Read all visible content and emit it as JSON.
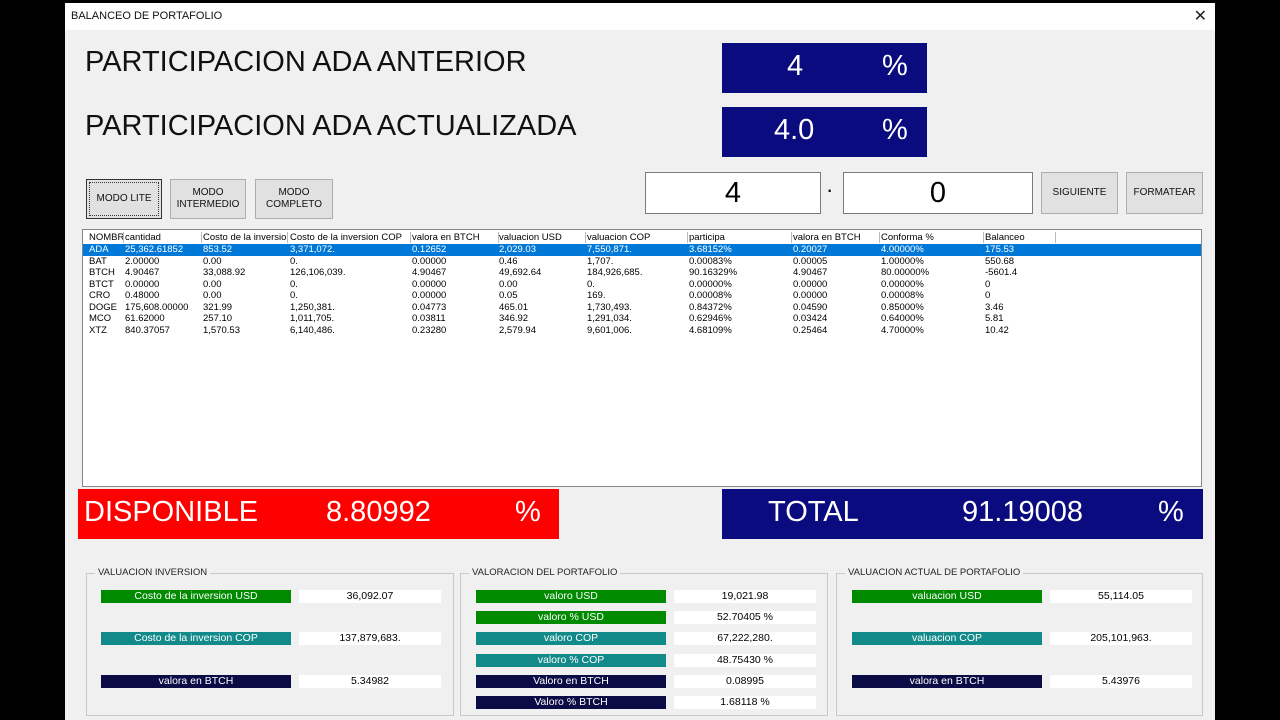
{
  "window": {
    "title": "BALANCEO DE PORTAFOLIO",
    "close": "✕"
  },
  "header": {
    "anterior_label": "PARTICIPACION ADA  ANTERIOR",
    "anterior_value": "4",
    "actualizada_label": "PARTICIPACION ADA ACTUALIZADA",
    "actualizada_value": "4.0",
    "percent": "%"
  },
  "toolbar": {
    "modo_lite": "MODO LITE",
    "modo_intermedio": "MODO INTERMEDIO",
    "modo_completo": "MODO COMPLETO",
    "input_left": "4",
    "separator": "·",
    "input_right": "0",
    "siguiente": "SIGUIENTE",
    "formatear": "FORMATEAR"
  },
  "table": {
    "columns": [
      "NOMBRE",
      "cantidad",
      "Costo de la inversion USD",
      "Costo de la inversion COP",
      "valora en BTCH",
      "valuacion USD",
      "valuacion COP",
      "participa",
      "valora en BTCH",
      "Conforma %",
      "Balanceo"
    ],
    "rows": [
      [
        "ADA",
        "25,362.61852",
        "853.52",
        "3,371,072.",
        "0.12652",
        "2,029.03",
        "7,550,871.",
        "3.68152%",
        "0.20027",
        "4.00000%",
        "175.53"
      ],
      [
        "BAT",
        "2.00000",
        "0.00",
        "0.",
        "0.00000",
        "0.46",
        "1,707.",
        "0.00083%",
        "0.00005",
        "1.00000%",
        "550.68"
      ],
      [
        "BTCH",
        "4.90467",
        "33,088.92",
        "126,106,039.",
        "4.90467",
        "49,692.64",
        "184,926,685.",
        "90.16329%",
        "4.90467",
        "80.00000%",
        "-5601.4"
      ],
      [
        "BTCT",
        "0.00000",
        "0.00",
        "0.",
        "0.00000",
        "0.00",
        "0.",
        "0.00000%",
        "0.00000",
        "0.00000%",
        "0"
      ],
      [
        "CRO",
        "0.48000",
        "0.00",
        "0.",
        "0.00000",
        "0.05",
        "169.",
        "0.00008%",
        "0.00000",
        "0.00008%",
        "0"
      ],
      [
        "DOGE",
        "175,608.00000",
        "321.99",
        "1,250,381.",
        "0.04773",
        "465.01",
        "1,730,493.",
        "0.84372%",
        "0.04590",
        "0.85000%",
        "3.46"
      ],
      [
        "MCO",
        "61.62000",
        "257.10",
        "1,011,705.",
        "0.03811",
        "346.92",
        "1,291,034.",
        "0.62946%",
        "0.03424",
        "0.64000%",
        "5.81"
      ],
      [
        "XTZ",
        "840.37057",
        "1,570.53",
        "6,140,486.",
        "0.23280",
        "2,579.94",
        "9,601,006.",
        "4.68109%",
        "0.25464",
        "4.70000%",
        "10.42"
      ]
    ],
    "selected_row": 0
  },
  "summary": {
    "disponible_label": "DISPONIBLE",
    "disponible_value": "8.80992",
    "total_label": "TOTAL",
    "total_value": "91.19008",
    "percent": "%"
  },
  "panels": {
    "inversion": {
      "title": "VALUACION INVERSION",
      "items": [
        {
          "label": "Costo de la inversion USD",
          "value": "36,092.07"
        },
        {
          "label": "Costo de la inversion COP",
          "value": "137,879,683."
        },
        {
          "label": "valora en BTCH",
          "value": "5.34982"
        }
      ]
    },
    "portafolio": {
      "title": "VALORACION DEL PORTAFOLIO",
      "items": [
        {
          "label": "valoro USD",
          "value": "19,021.98"
        },
        {
          "label": "valoro % USD",
          "value": "52.70405 %"
        },
        {
          "label": "valoro COP",
          "value": "67,222,280."
        },
        {
          "label": "valoro % COP",
          "value": "48.75430 %"
        },
        {
          "label": "Valoro en BTCH",
          "value": "0.08995"
        },
        {
          "label": "Valoro % BTCH",
          "value": "1.68118 %"
        }
      ]
    },
    "actual": {
      "title": "VALUACION ACTUAL DE PORTAFOLIO",
      "items": [
        {
          "label": "valuacion USD",
          "value": "55,114.05"
        },
        {
          "label": "valuacion COP",
          "value": "205,101,963."
        },
        {
          "label": "valora en BTCH",
          "value": "5.43976"
        }
      ]
    }
  },
  "colors": {
    "accent_blue": "#0b0b80",
    "disponible_red": "#ff0000",
    "green": "#008a00",
    "teal": "#138a8a",
    "navy": "#0b0b45",
    "selection": "#0078d7"
  }
}
